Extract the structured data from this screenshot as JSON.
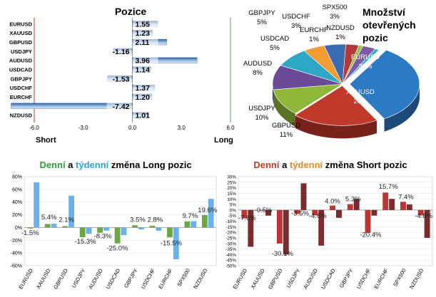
{
  "chart_data": [
    {
      "id": "pozice",
      "type": "bar",
      "orientation": "horizontal",
      "title": "Pozice",
      "categories": [
        "EURUSD",
        "XAUUSD",
        "GBPUSD",
        "USDJPY",
        "AUDUSD",
        "USDCAD",
        "GBPJPY",
        "USDCHF",
        "EURCHF",
        "SPX500",
        "NZDUSD"
      ],
      "values": [
        1.55,
        1.23,
        2.11,
        -1.16,
        3.96,
        1.14,
        -1.53,
        1.37,
        1.2,
        -7.42,
        1.01
      ],
      "value_labels": [
        "1.55",
        "1.23",
        "2.11",
        "-1.16",
        "3.96",
        "1.14",
        "-1.53",
        "1.37",
        "1.20",
        "-7.42",
        "1.01"
      ],
      "xlim": [
        -6.0,
        6.0
      ],
      "xticks": [
        "-6.0",
        "-3.0",
        "0.0",
        "3.0",
        "6.0"
      ],
      "axis_end_labels": {
        "left": "Short",
        "right": "Long"
      },
      "colors": {
        "bar_top": "#2b5d9c",
        "bar_bottom": "#cfe0f3",
        "left_line": "#c0392b",
        "right_line": "#4caf50"
      }
    },
    {
      "id": "mnozstvi",
      "type": "pie",
      "title": "Množství otevřených pozic",
      "title_lines": [
        "Množství",
        "otevřených",
        "pozic"
      ],
      "slices": [
        {
          "label": "EURUSD",
          "value": 33,
          "value_label": "33%",
          "color": "#2c7ac3"
        },
        {
          "label": "XAUUSD",
          "value": 20,
          "value_label": "20%",
          "color": "#c0392b"
        },
        {
          "label": "GBPUSD",
          "value": 11,
          "value_label": "11%",
          "color": "#8fb83a"
        },
        {
          "label": "USDJPY",
          "value": 10,
          "value_label": "10%",
          "color": "#6b4a9a"
        },
        {
          "label": "AUDUSD",
          "value": 8,
          "value_label": "8%",
          "color": "#2ea7c6"
        },
        {
          "label": "USDCAD",
          "value": 5,
          "value_label": "5%",
          "color": "#f39c34"
        },
        {
          "label": "GBPJPY",
          "value": 5,
          "value_label": "5%",
          "color": "#3a6bb0"
        },
        {
          "label": "USDCHF",
          "value": 3,
          "value_label": "3%",
          "color": "#b23a3a"
        },
        {
          "label": "EURCHF",
          "value": 1,
          "value_label": "1%",
          "color": "#9ac24a"
        },
        {
          "label": "SPX500",
          "value": 3,
          "value_label": "3%",
          "color": "#7d5aa6"
        },
        {
          "label": "NZDUSD",
          "value": 1,
          "value_label": "1%",
          "color": "#35b0cf"
        }
      ]
    },
    {
      "id": "long",
      "type": "bar",
      "title_parts": [
        {
          "text": "Denní",
          "color": "#2e9e3e"
        },
        {
          "text": " a ",
          "color": "#000000"
        },
        {
          "text": "týdenní",
          "color": "#2ba3d6"
        },
        {
          "text": " změna Long pozic",
          "color": "#000000"
        }
      ],
      "categories": [
        "EURUSD",
        "XAUUSD",
        "GBPUSD",
        "USDJPY",
        "AUDUSD",
        "USDCAD",
        "GBPJPY",
        "USDCHF",
        "EURCHF",
        "SPX500",
        "NZDUSD"
      ],
      "series": [
        {
          "name": "Denní",
          "values": [
            -1.5,
            5.4,
            2.1,
            -15.3,
            -8.3,
            -25.0,
            3.5,
            2.8,
            -15.5,
            9.7,
            19.6
          ],
          "color": "#5a9e2f"
        },
        {
          "name": "týdenní",
          "values": [
            71,
            6,
            50,
            -10,
            -5,
            -12,
            -3,
            -5,
            -50,
            10,
            45
          ],
          "color": "#5aa9ea"
        }
      ],
      "value_labels": [
        "-1.5%",
        "5.4%",
        "2.1%",
        "-15.3%",
        "-8.3%",
        "-25.0%",
        "3.5%",
        "2.8%",
        "-15.5%",
        "9.7%",
        "19.6%"
      ],
      "ylim": [
        -60,
        80
      ],
      "yticks": [
        "80%",
        "60%",
        "40%",
        "20%",
        "0%",
        "-20%",
        "-40%",
        "-60%"
      ]
    },
    {
      "id": "short",
      "type": "bar",
      "title_parts": [
        {
          "text": "Denní",
          "color": "#c0392b"
        },
        {
          "text": " a ",
          "color": "#000000"
        },
        {
          "text": "týdenní",
          "color": "#e08a2b"
        },
        {
          "text": " změna Short pozic",
          "color": "#000000"
        }
      ],
      "categories": [
        "EURUSD",
        "XAUUSD",
        "GBPUSD",
        "USDJPY",
        "AUDUSD",
        "USDCAD",
        "GBPJPY",
        "USDCHF",
        "EURCHF",
        "SPX500",
        "NZDUSD"
      ],
      "series": [
        {
          "name": "Denní",
          "values": [
            -7.6,
            -0.5,
            -30.1,
            -3.5,
            -4.8,
            4.0,
            5.3,
            -20.4,
            15.7,
            7.4,
            -4.8
          ],
          "color": "#b22020"
        },
        {
          "name": "týdenní",
          "values": [
            -33,
            -5,
            -40,
            24,
            -32,
            -7,
            10,
            -5,
            10,
            5,
            -25
          ],
          "color": "#6b1515"
        }
      ],
      "value_labels": [
        "-7.6%",
        "-0.5%",
        "-30.1%",
        "-3.5%",
        "-4.8%",
        "4.0%",
        "5.3%",
        "-20.4%",
        "15.7%",
        "7.4%",
        "-4.8%"
      ],
      "ylim": [
        -50,
        30
      ],
      "yticks": [
        "30%",
        "25%",
        "20%",
        "15%",
        "10%",
        "5%",
        "0%",
        "-5%",
        "-10%",
        "-15%",
        "-20%",
        "-25%",
        "-30%",
        "-35%",
        "-40%",
        "-45%",
        "-50%"
      ]
    }
  ]
}
